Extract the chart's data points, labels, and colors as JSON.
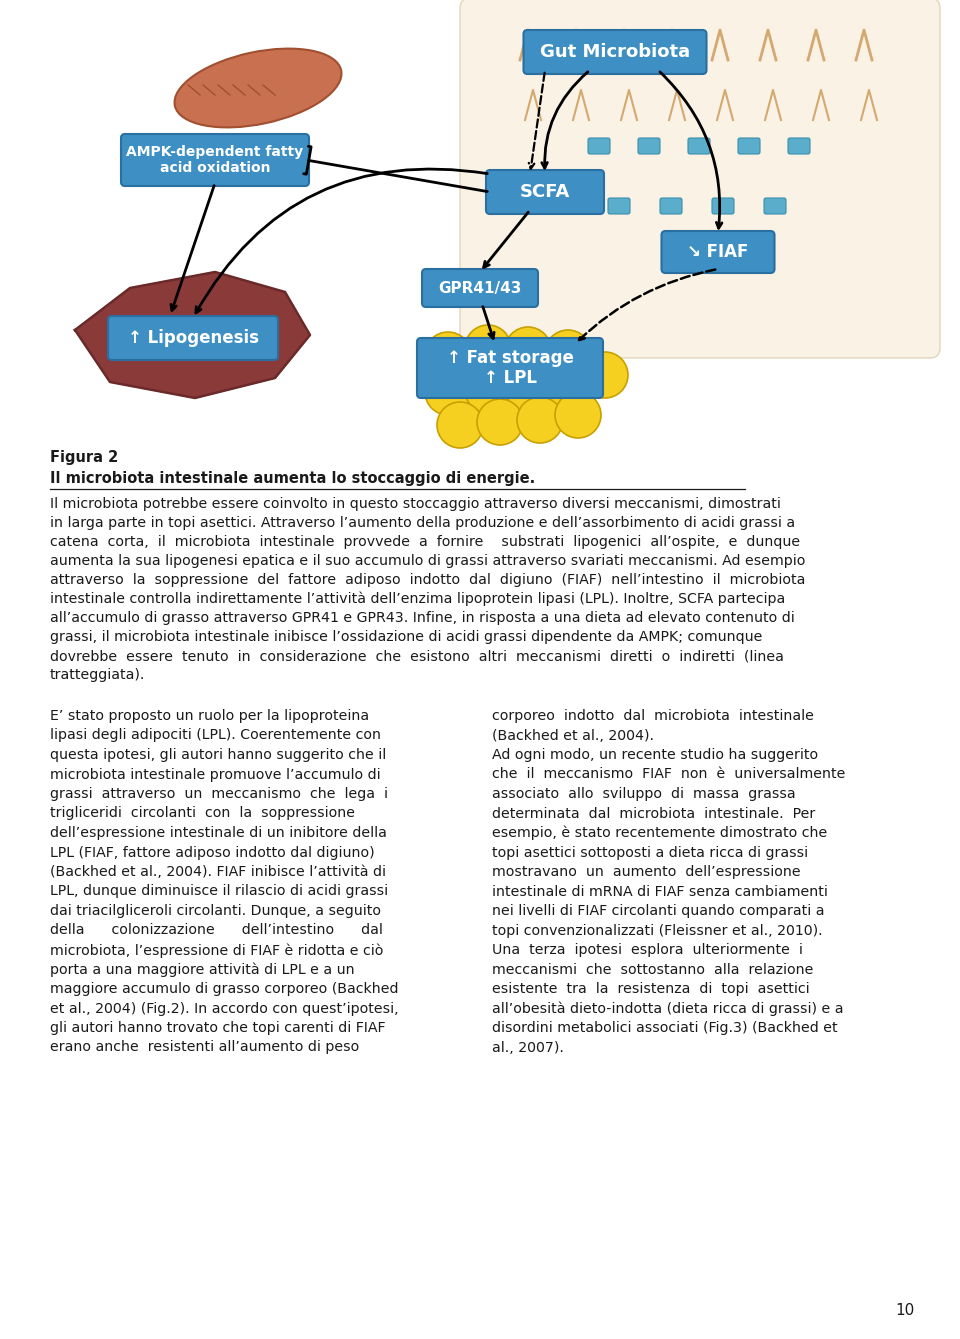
{
  "background_color": "#ffffff",
  "page_number": "10",
  "figure_label": "Figura 2",
  "figure_title": "Il microbiota intestinale aumenta lo stoccaggio di energie.",
  "figure_caption_lines": [
    "Il microbiota potrebbe essere coinvolto in questo stoccaggio attraverso diversi meccanismi, dimostrati",
    "in larga parte in topi asettici. Attraverso l’aumento della produzione e dell’assorbimento di acidi grassi a",
    "catena  corta,  il  microbiota  intestinale  provvede  a  fornire    substrati  lipogenici  all’ospite,  e  dunque",
    "aumenta la sua lipogenesi epatica e il suo accumulo di grassi attraverso svariati meccanismi. Ad esempio",
    "attraverso  la  soppressione  del  fattore  adiposo  indotto  dal  digiuno  (FIAF)  nell’intestino  il  microbiota",
    "intestinale controlla indirettamente l’attività dell’enzima lipoprotein lipasi (LPL). Inoltre, SCFA partecipa",
    "all’accumulo di grasso attraverso GPR41 e GPR43. Infine, in risposta a una dieta ad elevato contenuto di",
    "grassi, il microbiota intestinale inibisce l’ossidazione di acidi grassi dipendente da AMPK; comunque",
    "dovrebbe  essere  tenuto  in  considerazione  che  esistono  altri  meccanismi  diretti  o  indiretti  (linea",
    "tratteggiata)."
  ],
  "left_col_lines": [
    "E’ stato proposto un ruolo per la lipoproteina",
    "lipasi degli adipociti (LPL). Coerentemente con",
    "questa ipotesi, gli autori hanno suggerito che il",
    "microbiota intestinale promuove l’accumulo di",
    "grassi  attraverso  un  meccanismo  che  lega  i",
    "trigliceridi  circolanti  con  la  soppressione",
    "dell’espressione intestinale di un inibitore della",
    "LPL (FIAF, fattore adiposo indotto dal digiuno)",
    "(Backhed et al., 2004). FIAF inibisce l’attività di",
    "LPL, dunque diminuisce il rilascio di acidi grassi",
    "dai triacilgliceroli circolanti. Dunque, a seguito",
    "della      colonizzazione      dell’intestino      dal",
    "microbiota, l’espressione di FIAF è ridotta e ciò",
    "porta a una maggiore attività di LPL e a un",
    "maggiore accumulo di grasso corporeo (Backhed",
    "et al., 2004) (Fig.2). In accordo con quest’ipotesi,",
    "gli autori hanno trovato che topi carenti di FIAF",
    "erano anche  resistenti all’aumento di peso"
  ],
  "right_col_lines": [
    "corporeo  indotto  dal  microbiota  intestinale",
    "(Backhed et al., 2004).",
    "Ad ogni modo, un recente studio ha suggerito",
    "che  il  meccanismo  FIAF  non  è  universalmente",
    "associato  allo  sviluppo  di  massa  grassa",
    "determinata  dal  microbiota  intestinale.  Per",
    "esempio, è stato recentemente dimostrato che",
    "topi asettici sottoposti a dieta ricca di grassi",
    "mostravano  un  aumento  dell’espressione",
    "intestinale di mRNA di FIAF senza cambiamenti",
    "nei livelli di FIAF circolanti quando comparati a",
    "topi convenzionalizzati (Fleissner et al., 2010).",
    "Una  terza  ipotesi  esplora  ulteriormente  i",
    "meccanismi  che  sottostanno  alla  relazione",
    "esistente  tra  la  resistenza  di  topi  asettici",
    "all’obesità dieto-indotta (dieta ricca di grassi) e a",
    "disordini metabolici associati (Fig.3) (Backhed et",
    "al., 2007)."
  ],
  "text_color": "#1a1a1a",
  "box_color": "#3d8fc4",
  "box_edge_color": "#2a6fa0",
  "liver_color": "#8B3A3A",
  "liver_edge_color": "#6B2A2A",
  "fat_color": "#f5d020",
  "fat_edge_color": "#c8a000",
  "muscle_color": "#c97050",
  "muscle_edge_color": "#a05030",
  "intestine_bg_color": "#f5e8d0"
}
